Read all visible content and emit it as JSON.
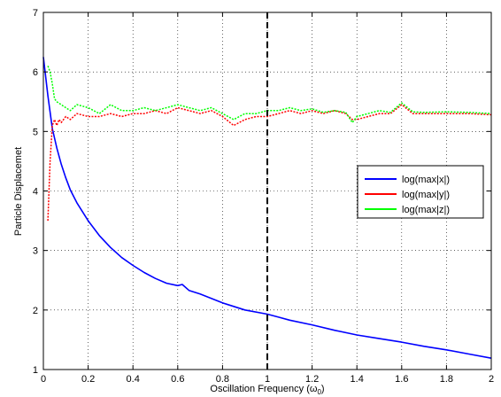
{
  "chart_data": {
    "type": "line",
    "title": "",
    "xlabel": "Oscillation Frequency (ω",
    "xlabel_sub": "0",
    "xlabel_close": ")",
    "ylabel": "Particle Displacemet",
    "xlim": [
      0,
      2
    ],
    "ylim": [
      1,
      7
    ],
    "xticks": [
      0,
      0.2,
      0.4,
      0.6,
      0.8,
      1,
      1.2,
      1.4,
      1.6,
      1.8,
      2
    ],
    "xtick_labels": [
      "0",
      "0.2",
      "0.4",
      "0.6",
      "0.8",
      "1",
      "1.2",
      "1.4",
      "1.6",
      "1.8",
      "2"
    ],
    "yticks": [
      1,
      2,
      3,
      4,
      5,
      6,
      7
    ],
    "ytick_labels": [
      "1",
      "2",
      "3",
      "4",
      "5",
      "6",
      "7"
    ],
    "grid": true,
    "grid_style": "dotted",
    "legend_position": "right",
    "vline": {
      "x": 1,
      "style": "dashed",
      "color": "#000000"
    },
    "series": [
      {
        "name": "log(max|x|)",
        "color": "#0000ff",
        "x": [
          0,
          0.02,
          0.04,
          0.06,
          0.08,
          0.1,
          0.12,
          0.15,
          0.2,
          0.25,
          0.3,
          0.35,
          0.4,
          0.45,
          0.5,
          0.55,
          0.6,
          0.62,
          0.65,
          0.7,
          0.8,
          0.9,
          1.0,
          1.05,
          1.1,
          1.2,
          1.3,
          1.4,
          1.5,
          1.6,
          1.7,
          1.8,
          1.9,
          2.0
        ],
        "y": [
          6.25,
          5.6,
          5.05,
          4.72,
          4.45,
          4.22,
          4.02,
          3.8,
          3.5,
          3.25,
          3.05,
          2.88,
          2.75,
          2.63,
          2.53,
          2.45,
          2.41,
          2.43,
          2.33,
          2.27,
          2.12,
          2.0,
          1.93,
          1.88,
          1.83,
          1.75,
          1.66,
          1.58,
          1.52,
          1.46,
          1.39,
          1.33,
          1.26,
          1.19
        ]
      },
      {
        "name": "log(max|y|)",
        "color": "#ff0000",
        "x": [
          0.02,
          0.03,
          0.04,
          0.05,
          0.06,
          0.07,
          0.08,
          0.1,
          0.12,
          0.15,
          0.2,
          0.25,
          0.3,
          0.35,
          0.4,
          0.45,
          0.5,
          0.55,
          0.6,
          0.65,
          0.7,
          0.75,
          0.8,
          0.85,
          0.9,
          0.95,
          1.0,
          1.05,
          1.1,
          1.15,
          1.2,
          1.25,
          1.3,
          1.35,
          1.38,
          1.4,
          1.45,
          1.5,
          1.55,
          1.6,
          1.65,
          1.7,
          1.8,
          1.9,
          2.0
        ],
        "y": [
          3.5,
          4.5,
          5.1,
          5.2,
          5.1,
          5.2,
          5.15,
          5.25,
          5.2,
          5.3,
          5.25,
          5.25,
          5.3,
          5.25,
          5.3,
          5.3,
          5.35,
          5.3,
          5.4,
          5.35,
          5.3,
          5.35,
          5.25,
          5.1,
          5.2,
          5.25,
          5.25,
          5.3,
          5.35,
          5.3,
          5.35,
          5.3,
          5.35,
          5.3,
          5.2,
          5.2,
          5.25,
          5.3,
          5.3,
          5.45,
          5.3,
          5.3,
          5.3,
          5.3,
          5.28
        ]
      },
      {
        "name": "log(max|z|)",
        "color": "#00ff00",
        "x": [
          0.02,
          0.03,
          0.04,
          0.05,
          0.06,
          0.08,
          0.1,
          0.12,
          0.15,
          0.2,
          0.25,
          0.3,
          0.35,
          0.4,
          0.45,
          0.5,
          0.55,
          0.6,
          0.65,
          0.7,
          0.75,
          0.8,
          0.85,
          0.9,
          0.95,
          1.0,
          1.05,
          1.1,
          1.15,
          1.2,
          1.25,
          1.3,
          1.35,
          1.38,
          1.4,
          1.45,
          1.5,
          1.55,
          1.6,
          1.65,
          1.7,
          1.8,
          1.9,
          2.0
        ],
        "y": [
          6.1,
          6.0,
          5.8,
          5.55,
          5.5,
          5.45,
          5.4,
          5.35,
          5.45,
          5.4,
          5.3,
          5.45,
          5.35,
          5.35,
          5.4,
          5.35,
          5.4,
          5.45,
          5.4,
          5.35,
          5.4,
          5.3,
          5.2,
          5.3,
          5.3,
          5.35,
          5.35,
          5.4,
          5.35,
          5.38,
          5.32,
          5.35,
          5.32,
          5.15,
          5.25,
          5.3,
          5.35,
          5.32,
          5.48,
          5.33,
          5.32,
          5.33,
          5.32,
          5.3
        ]
      }
    ]
  }
}
